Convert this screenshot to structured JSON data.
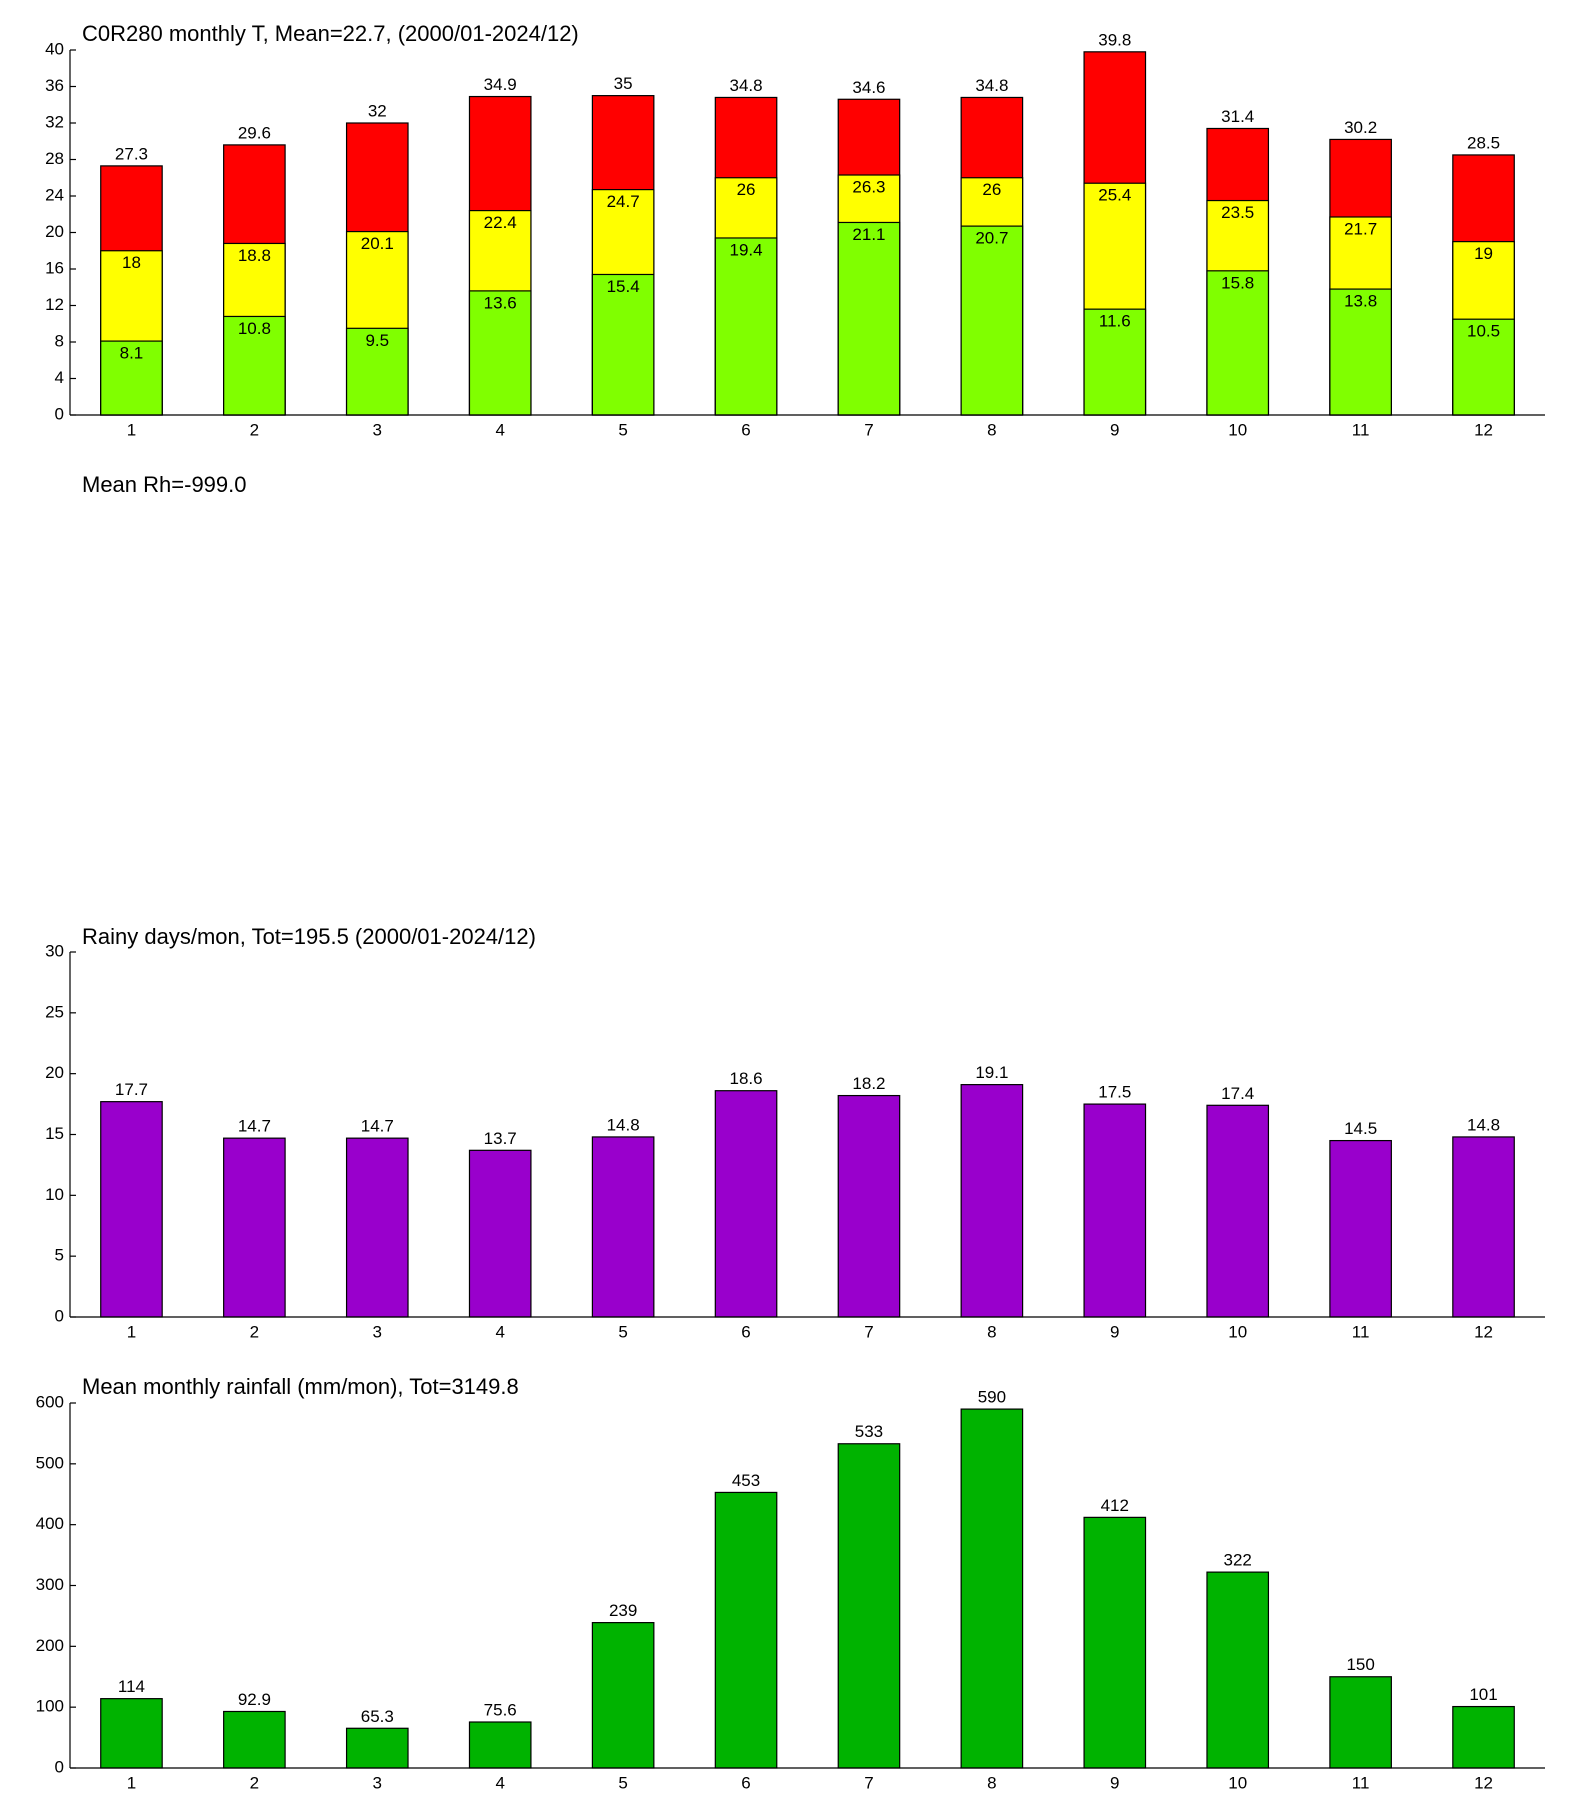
{
  "chart_data": [
    {
      "type": "overlay-bar",
      "title": "C0R280 monthly T, Mean=22.7, (2000/01-2024/12)",
      "categories": [
        "1",
        "2",
        "3",
        "4",
        "5",
        "6",
        "7",
        "8",
        "9",
        "10",
        "11",
        "12"
      ],
      "series": [
        {
          "color": "#ff0000",
          "values": [
            27.3,
            29.6,
            32,
            34.9,
            35,
            34.8,
            34.6,
            34.8,
            39.8,
            31.4,
            30.2,
            28.5
          ]
        },
        {
          "color": "#ffff00",
          "values": [
            18,
            18.8,
            20.1,
            22.4,
            24.7,
            26,
            26.3,
            26,
            25.4,
            23.5,
            21.7,
            19
          ]
        },
        {
          "color": "#80ff00",
          "values": [
            8.1,
            10.8,
            9.5,
            13.6,
            15.4,
            19.4,
            21.1,
            20.7,
            11.6,
            15.8,
            13.8,
            10.5
          ]
        }
      ],
      "ylim": [
        0,
        40
      ],
      "yticks": [
        0,
        4,
        8,
        12,
        16,
        20,
        24,
        28,
        32,
        36,
        40
      ]
    },
    {
      "type": "empty",
      "title": "Mean Rh=-999.0"
    },
    {
      "type": "bar",
      "title": "Rainy days/mon, Tot=195.5 (2000/01-2024/12)",
      "categories": [
        "1",
        "2",
        "3",
        "4",
        "5",
        "6",
        "7",
        "8",
        "9",
        "10",
        "11",
        "12"
      ],
      "values": [
        17.7,
        14.7,
        14.7,
        13.7,
        14.8,
        18.6,
        18.2,
        19.1,
        17.5,
        17.4,
        14.5,
        14.8
      ],
      "color": "#9900cc",
      "ylim": [
        0,
        30
      ],
      "yticks": [
        0,
        5,
        10,
        15,
        20,
        25,
        30
      ]
    },
    {
      "type": "bar",
      "title": "Mean monthly rainfall (mm/mon), Tot=3149.8",
      "categories": [
        "1",
        "2",
        "3",
        "4",
        "5",
        "6",
        "7",
        "8",
        "9",
        "10",
        "11",
        "12"
      ],
      "values": [
        114,
        92.9,
        65.3,
        75.6,
        239,
        453,
        533,
        590,
        412,
        322,
        150,
        101
      ],
      "color": "#00b300",
      "ylim": [
        0,
        600
      ],
      "yticks": [
        0,
        100,
        200,
        300,
        400,
        500,
        600
      ]
    }
  ]
}
